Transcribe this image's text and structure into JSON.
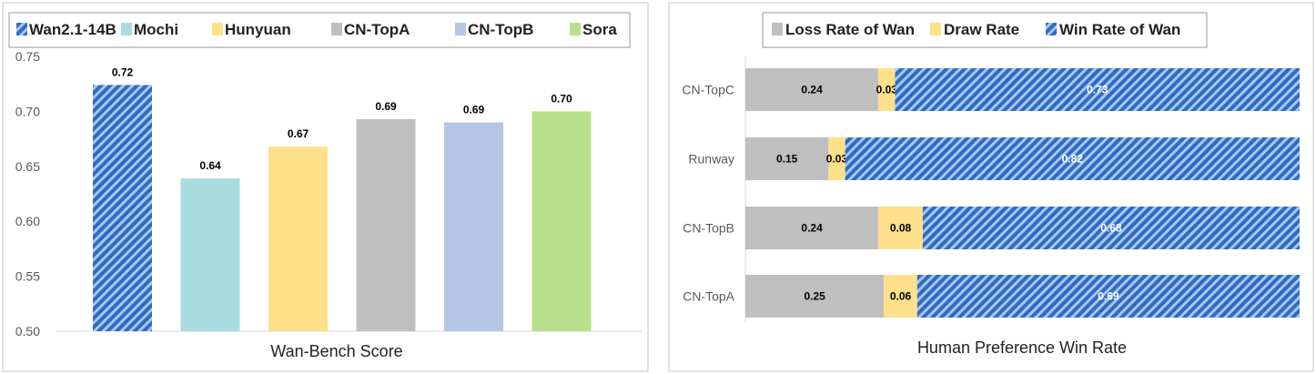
{
  "chart_data": [
    {
      "type": "bar",
      "xlabel": "Wan-Bench Score",
      "ylim": [
        0.5,
        0.75
      ],
      "yticks": [
        "0.50",
        "0.55",
        "0.60",
        "0.65",
        "0.70",
        "0.75"
      ],
      "legend_position": "top",
      "grid": false,
      "series": [
        {
          "name": "Wan2.1-14B",
          "value": 0.724,
          "label": "0.72",
          "color": "#4472C4",
          "pattern": "diagonal-stripes"
        },
        {
          "name": "Mochi",
          "value": 0.639,
          "label": "0.64",
          "color": "#A8DCDE"
        },
        {
          "name": "Hunyuan",
          "value": 0.668,
          "label": "0.67",
          "color": "#FFE08A"
        },
        {
          "name": "CN-TopA",
          "value": 0.693,
          "label": "0.69",
          "color": "#BFBFBF"
        },
        {
          "name": "CN-TopB",
          "value": 0.69,
          "label": "0.69",
          "color": "#B4C7E7"
        },
        {
          "name": "Sora",
          "value": 0.7,
          "label": "0.70",
          "color": "#B8E08A"
        }
      ]
    },
    {
      "type": "bar",
      "orientation": "horizontal",
      "stacked": true,
      "xlabel": "Human Preference Win Rate",
      "xlim": [
        0,
        1
      ],
      "legend_position": "top",
      "grid": false,
      "categories": [
        "CN-TopC",
        "Runway",
        "CN-TopB",
        "CN-TopA"
      ],
      "series": [
        {
          "name": "Loss Rate of Wan",
          "color": "#BFBFBF",
          "values": [
            0.24,
            0.15,
            0.24,
            0.25
          ],
          "labels": [
            "0.24",
            "0.15",
            "0.24",
            "0.25"
          ]
        },
        {
          "name": "Draw Rate",
          "color": "#FFE08A",
          "values": [
            0.03,
            0.03,
            0.08,
            0.06
          ],
          "labels": [
            "0.03",
            "0.03",
            "0.08",
            "0.06"
          ]
        },
        {
          "name": "Win Rate of Wan",
          "color": "#4472C4",
          "pattern": "diagonal-stripes",
          "values": [
            0.73,
            0.82,
            0.68,
            0.69
          ],
          "labels": [
            "0.73",
            "0.82",
            "0.68",
            "0.69"
          ]
        }
      ]
    }
  ]
}
